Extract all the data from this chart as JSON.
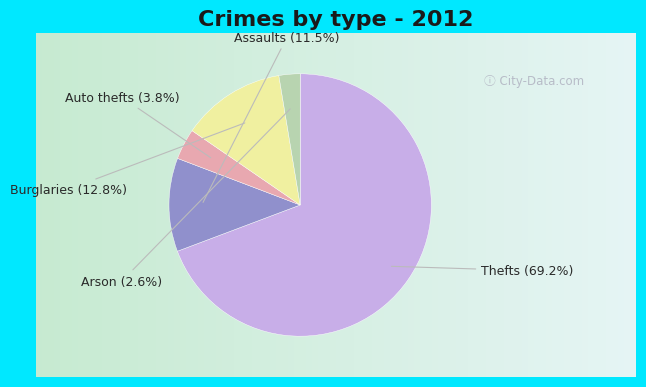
{
  "title": "Crimes by type - 2012",
  "categories": [
    "Thefts",
    "Assaults",
    "Auto thefts",
    "Burglaries",
    "Arson"
  ],
  "values": [
    69.2,
    11.5,
    3.8,
    12.8,
    2.6
  ],
  "colors": [
    "#c8aee8",
    "#9090cc",
    "#e8a8b0",
    "#f0f0a0",
    "#b8d4b0"
  ],
  "labels": [
    "Thefts (69.2%)",
    "Assaults (11.5%)",
    "Auto thefts (3.8%)",
    "Burglaries (12.8%)",
    "Arson (2.6%)"
  ],
  "background_cyan": "#00e8ff",
  "background_inner_left": "#c8e8d0",
  "background_inner_right": "#e0f0f0",
  "title_fontsize": 16,
  "label_fontsize": 9,
  "startangle": 90
}
